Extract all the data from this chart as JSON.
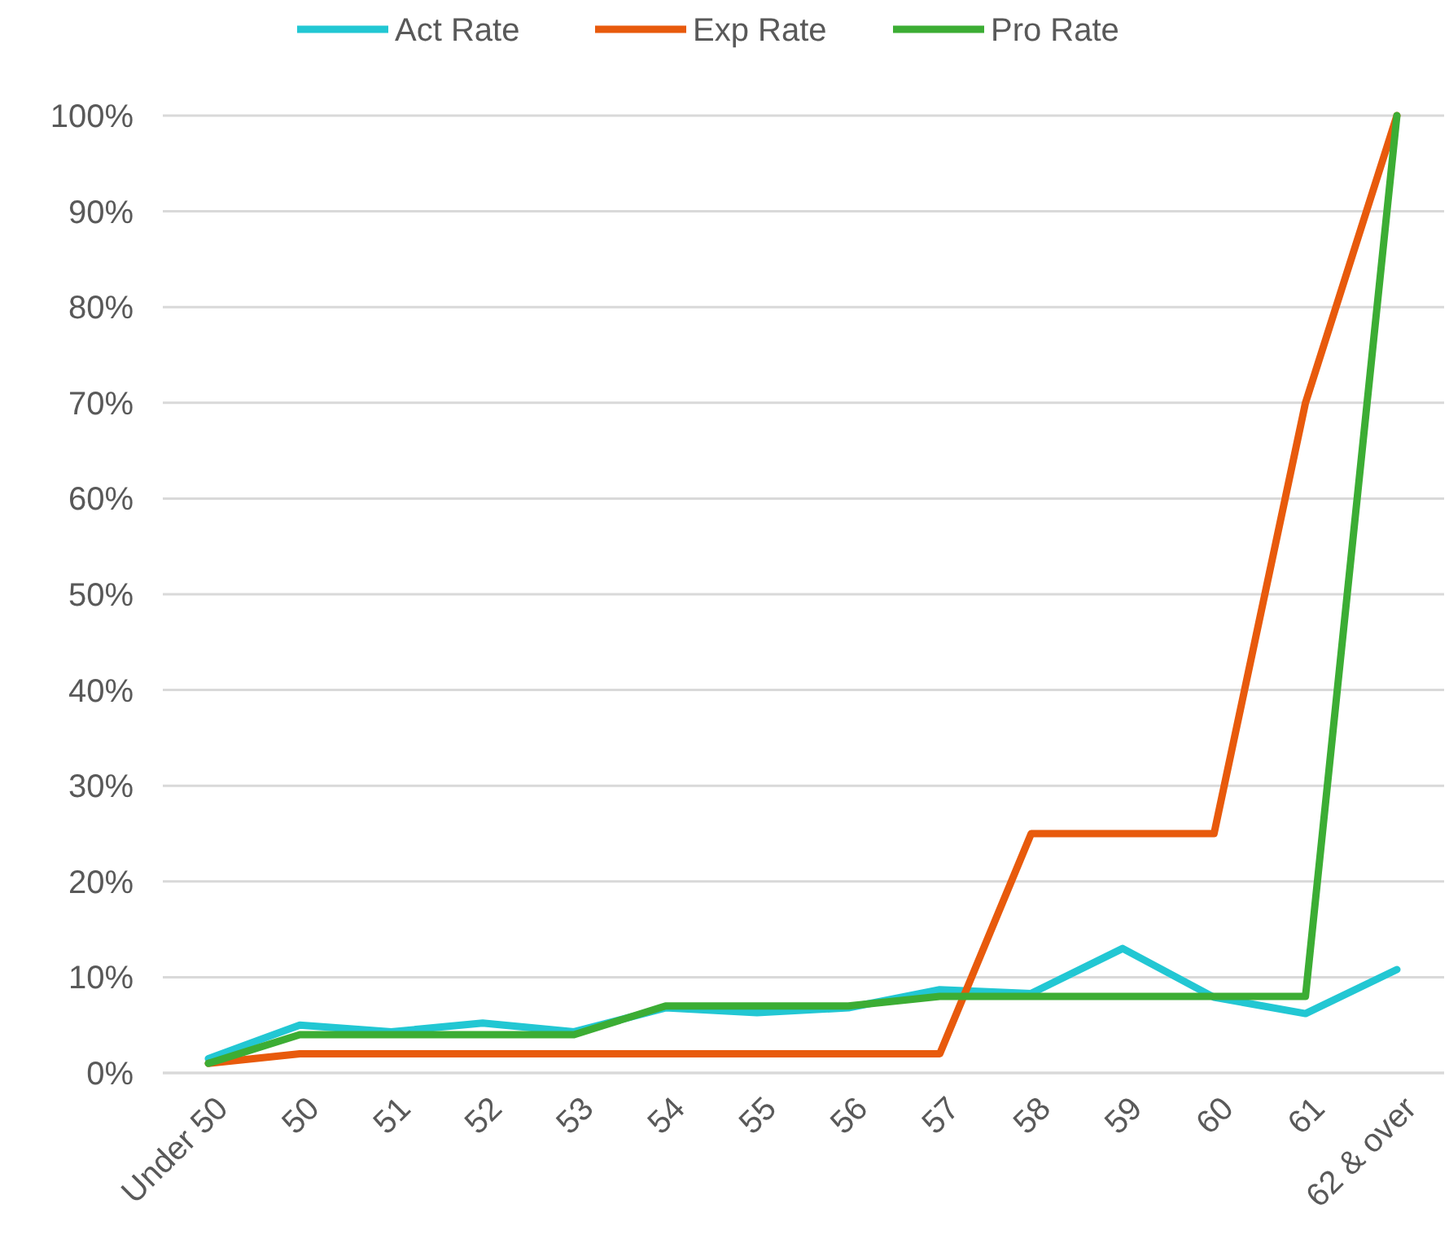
{
  "chart_data": {
    "type": "line",
    "categories": [
      "Under 50",
      "50",
      "51",
      "52",
      "53",
      "54",
      "55",
      "56",
      "57",
      "58",
      "59",
      "60",
      "61",
      "62 & over"
    ],
    "series": [
      {
        "name": "Act Rate",
        "color": "#22c7d3",
        "values": [
          1.5,
          5,
          4.3,
          5.2,
          4.3,
          6.8,
          6.3,
          6.8,
          8.7,
          8.3,
          13,
          7.9,
          6.2,
          10.8
        ]
      },
      {
        "name": "Exp Rate",
        "color": "#e85a0c",
        "values": [
          1,
          2,
          2,
          2,
          2,
          2,
          2,
          2,
          2,
          25,
          25,
          25,
          70,
          100
        ]
      },
      {
        "name": "Pro Rate",
        "color": "#3cad34",
        "values": [
          1,
          4,
          4,
          4,
          4,
          7,
          7,
          7,
          8,
          8,
          8,
          8,
          8,
          100
        ]
      }
    ],
    "ylim": [
      0,
      100
    ],
    "yticks": [
      {
        "value": 0,
        "label": "0%"
      },
      {
        "value": 10,
        "label": "10%"
      },
      {
        "value": 20,
        "label": "20%"
      },
      {
        "value": 30,
        "label": "30%"
      },
      {
        "value": 40,
        "label": "40%"
      },
      {
        "value": 50,
        "label": "50%"
      },
      {
        "value": 60,
        "label": "60%"
      },
      {
        "value": 70,
        "label": "70%"
      },
      {
        "value": 80,
        "label": "80%"
      },
      {
        "value": 90,
        "label": "90%"
      },
      {
        "value": 100,
        "label": "100%"
      }
    ],
    "grid": "y",
    "legend": "top",
    "marker": "none",
    "line_style": "solid"
  }
}
